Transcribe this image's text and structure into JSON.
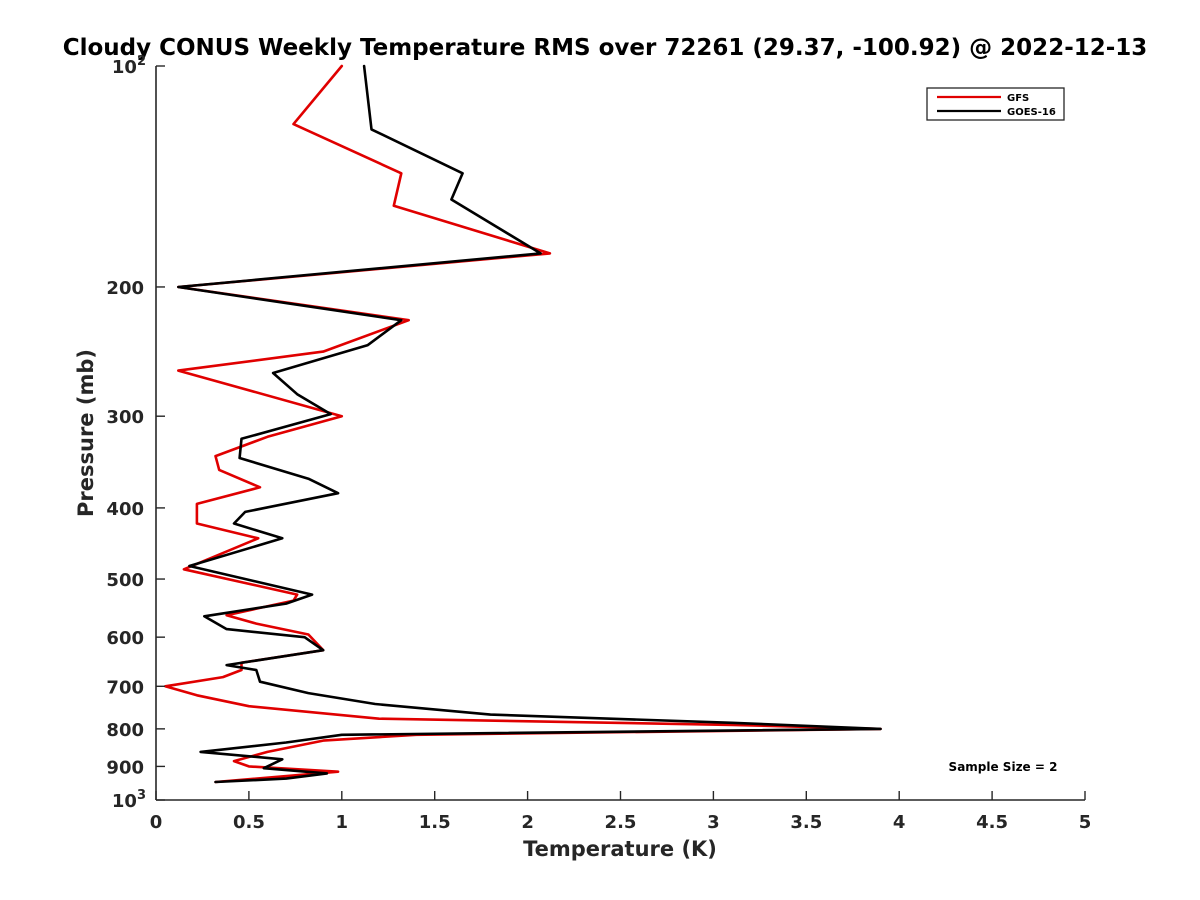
{
  "chart_data": {
    "type": "line",
    "title": "Cloudy CONUS Weekly Temperature RMS over 72261 (29.37, -100.92) @ 2022-12-13",
    "xlabel": "Temperature (K)",
    "ylabel": "Pressure (mb)",
    "xlim": [
      0,
      5
    ],
    "ylim": [
      1000,
      100
    ],
    "yscale": "log",
    "x_ticks": [
      "0",
      "0.5",
      "1",
      "1.5",
      "2",
      "2.5",
      "3",
      "3.5",
      "4",
      "4.5",
      "5"
    ],
    "x_tick_values": [
      0,
      0.5,
      1,
      1.5,
      2,
      2.5,
      3,
      3.5,
      4,
      4.5,
      5
    ],
    "y_ticks": [
      {
        "value": 100,
        "base": "10",
        "exp": "2"
      },
      {
        "value": 200,
        "label": "200"
      },
      {
        "value": 300,
        "label": "300"
      },
      {
        "value": 400,
        "label": "400"
      },
      {
        "value": 500,
        "label": "500"
      },
      {
        "value": 600,
        "label": "600"
      },
      {
        "value": 700,
        "label": "700"
      },
      {
        "value": 800,
        "label": "800"
      },
      {
        "value": 900,
        "label": "900"
      },
      {
        "value": 1000,
        "base": "10",
        "exp": "3"
      }
    ],
    "legend_position": "top-right",
    "annotation": "Sample Size = 2",
    "series": [
      {
        "name": "GFS",
        "color": "#e00000",
        "points": [
          [
            1.0,
            100
          ],
          [
            0.74,
            120
          ],
          [
            1.32,
            140
          ],
          [
            1.28,
            155
          ],
          [
            2.12,
            180
          ],
          [
            0.12,
            200
          ],
          [
            1.36,
            222
          ],
          [
            0.9,
            245
          ],
          [
            0.12,
            260
          ],
          [
            1.0,
            300
          ],
          [
            0.6,
            320
          ],
          [
            0.32,
            340
          ],
          [
            0.34,
            355
          ],
          [
            0.56,
            375
          ],
          [
            0.22,
            395
          ],
          [
            0.22,
            420
          ],
          [
            0.55,
            440
          ],
          [
            0.15,
            485
          ],
          [
            0.76,
            525
          ],
          [
            0.74,
            535
          ],
          [
            0.38,
            560
          ],
          [
            0.54,
            575
          ],
          [
            0.82,
            595
          ],
          [
            0.9,
            625
          ],
          [
            0.46,
            650
          ],
          [
            0.46,
            665
          ],
          [
            0.36,
            680
          ],
          [
            0.05,
            700
          ],
          [
            0.22,
            720
          ],
          [
            0.5,
            745
          ],
          [
            1.2,
            775
          ],
          [
            3.1,
            790
          ],
          [
            3.9,
            800
          ],
          [
            1.4,
            815
          ],
          [
            0.9,
            830
          ],
          [
            0.6,
            860
          ],
          [
            0.42,
            885
          ],
          [
            0.5,
            900
          ],
          [
            0.98,
            915
          ],
          [
            0.32,
            945
          ]
        ]
      },
      {
        "name": "GOES-16",
        "color": "#000000",
        "points": [
          [
            1.12,
            100
          ],
          [
            1.16,
            122
          ],
          [
            1.65,
            140
          ],
          [
            1.59,
            152
          ],
          [
            2.07,
            180
          ],
          [
            0.12,
            200
          ],
          [
            1.32,
            222
          ],
          [
            1.14,
            240
          ],
          [
            0.63,
            262
          ],
          [
            0.76,
            280
          ],
          [
            0.94,
            298
          ],
          [
            0.46,
            322
          ],
          [
            0.45,
            342
          ],
          [
            0.82,
            365
          ],
          [
            0.98,
            382
          ],
          [
            0.48,
            405
          ],
          [
            0.42,
            420
          ],
          [
            0.68,
            440
          ],
          [
            0.18,
            480
          ],
          [
            0.84,
            525
          ],
          [
            0.7,
            540
          ],
          [
            0.26,
            562
          ],
          [
            0.38,
            585
          ],
          [
            0.8,
            600
          ],
          [
            0.9,
            625
          ],
          [
            0.38,
            655
          ],
          [
            0.54,
            665
          ],
          [
            0.56,
            690
          ],
          [
            0.82,
            715
          ],
          [
            1.18,
            740
          ],
          [
            1.8,
            765
          ],
          [
            3.1,
            785
          ],
          [
            3.9,
            800
          ],
          [
            1.0,
            815
          ],
          [
            0.7,
            835
          ],
          [
            0.24,
            860
          ],
          [
            0.68,
            880
          ],
          [
            0.58,
            905
          ],
          [
            0.92,
            920
          ],
          [
            0.7,
            935
          ],
          [
            0.32,
            945
          ]
        ]
      }
    ]
  }
}
